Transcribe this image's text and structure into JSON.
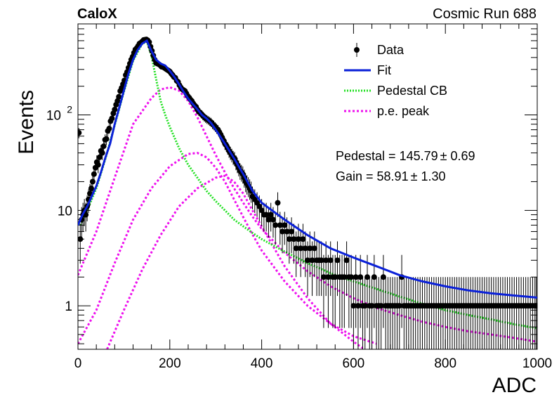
{
  "chart_data": {
    "type": "scatter",
    "experiment_label": "CaloX",
    "run_label": "Cosmic Run 688",
    "xlabel": "ADC",
    "ylabel": "Events",
    "xlim": [
      0,
      1000
    ],
    "ylim": [
      0.35,
      900
    ],
    "y_scale": "log",
    "x_ticks": [
      {
        "value": 0,
        "label": "0"
      },
      {
        "value": 200,
        "label": "200"
      },
      {
        "value": 400,
        "label": "400"
      },
      {
        "value": 600,
        "label": "600"
      },
      {
        "value": 800,
        "label": "800"
      },
      {
        "value": 1000,
        "label": "1000"
      }
    ],
    "y_ticks": [
      {
        "value": 1,
        "label": "1"
      },
      {
        "value": 10,
        "label": "10"
      },
      {
        "value": 100,
        "label": "10",
        "exponent": "2"
      }
    ],
    "legend_position": "top-right",
    "legend": [
      {
        "label": "Data",
        "style": "marker",
        "color": "#000000"
      },
      {
        "label": "Fit",
        "style": "solid",
        "color": "#0a20d8"
      },
      {
        "label": "Pedestal CB",
        "style": "dotted",
        "color": "#22e022"
      },
      {
        "label": "p.e. peak",
        "style": "dashed",
        "color": "#ee10ee"
      }
    ],
    "annotations": [
      {
        "text": "Pedestal = 145.79",
        "pm": "± 0.69"
      },
      {
        "text": "Gain = 58.91",
        "pm": "± 1.30"
      }
    ],
    "data_points": [
      [
        2,
        65
      ],
      [
        5,
        5
      ],
      [
        8,
        8
      ],
      [
        11,
        9
      ],
      [
        14,
        10
      ],
      [
        17,
        9
      ],
      [
        20,
        11
      ],
      [
        23,
        13
      ],
      [
        26,
        15
      ],
      [
        29,
        17
      ],
      [
        32,
        20
      ],
      [
        35,
        24
      ],
      [
        38,
        28
      ],
      [
        41,
        32
      ],
      [
        44,
        30
      ],
      [
        47,
        36
      ],
      [
        50,
        42
      ],
      [
        53,
        40
      ],
      [
        56,
        47
      ],
      [
        59,
        55
      ],
      [
        62,
        56
      ],
      [
        65,
        68
      ],
      [
        68,
        72
      ],
      [
        71,
        86
      ],
      [
        74,
        92
      ],
      [
        77,
        104
      ],
      [
        80,
        114
      ],
      [
        83,
        128
      ],
      [
        86,
        140
      ],
      [
        89,
        155
      ],
      [
        92,
        178
      ],
      [
        95,
        192
      ],
      [
        98,
        210
      ],
      [
        101,
        230
      ],
      [
        104,
        262
      ],
      [
        107,
        282
      ],
      [
        110,
        312
      ],
      [
        113,
        345
      ],
      [
        116,
        380
      ],
      [
        119,
        408
      ],
      [
        122,
        448
      ],
      [
        125,
        485
      ],
      [
        128,
        502
      ],
      [
        131,
        528
      ],
      [
        134,
        560
      ],
      [
        137,
        572
      ],
      [
        140,
        590
      ],
      [
        143,
        610
      ],
      [
        146,
        615
      ],
      [
        149,
        618
      ],
      [
        152,
        605
      ],
      [
        155,
        580
      ],
      [
        158,
        520
      ],
      [
        161,
        470
      ],
      [
        164,
        420
      ],
      [
        167,
        380
      ],
      [
        170,
        350
      ],
      [
        173,
        345
      ],
      [
        176,
        340
      ],
      [
        179,
        332
      ],
      [
        182,
        320
      ],
      [
        185,
        318
      ],
      [
        188,
        312
      ],
      [
        191,
        305
      ],
      [
        194,
        298
      ],
      [
        197,
        292
      ],
      [
        200,
        285
      ],
      [
        203,
        272
      ],
      [
        206,
        262
      ],
      [
        209,
        250
      ],
      [
        212,
        245
      ],
      [
        215,
        228
      ],
      [
        218,
        222
      ],
      [
        221,
        205
      ],
      [
        224,
        194
      ],
      [
        227,
        186
      ],
      [
        230,
        182
      ],
      [
        233,
        178
      ],
      [
        236,
        168
      ],
      [
        239,
        158
      ],
      [
        242,
        152
      ],
      [
        245,
        145
      ],
      [
        248,
        140
      ],
      [
        251,
        132
      ],
      [
        254,
        126
      ],
      [
        257,
        122
      ],
      [
        260,
        114
      ],
      [
        263,
        108
      ],
      [
        266,
        106
      ],
      [
        269,
        102
      ],
      [
        272,
        98
      ],
      [
        275,
        95
      ],
      [
        278,
        92
      ],
      [
        281,
        90
      ],
      [
        284,
        88
      ],
      [
        287,
        86
      ],
      [
        290,
        84
      ],
      [
        293,
        80
      ],
      [
        296,
        78
      ],
      [
        299,
        75
      ],
      [
        302,
        72
      ],
      [
        305,
        70
      ],
      [
        308,
        66
      ],
      [
        311,
        62
      ],
      [
        314,
        58
      ],
      [
        317,
        54
      ],
      [
        320,
        50
      ],
      [
        323,
        48
      ],
      [
        326,
        45
      ],
      [
        329,
        42
      ],
      [
        332,
        40
      ],
      [
        335,
        38
      ],
      [
        338,
        36
      ],
      [
        341,
        35
      ],
      [
        344,
        32
      ],
      [
        347,
        30
      ],
      [
        350,
        28
      ],
      [
        353,
        26
      ],
      [
        356,
        25
      ],
      [
        359,
        24
      ],
      [
        362,
        22
      ],
      [
        365,
        20
      ],
      [
        368,
        19
      ],
      [
        371,
        18
      ],
      [
        374,
        17
      ],
      [
        377,
        16
      ],
      [
        380,
        14
      ],
      [
        385,
        13
      ],
      [
        390,
        12
      ],
      [
        395,
        11
      ],
      [
        400,
        10
      ],
      [
        405,
        9
      ],
      [
        410,
        9
      ],
      [
        415,
        8
      ],
      [
        420,
        9
      ],
      [
        425,
        8
      ],
      [
        430,
        7
      ],
      [
        435,
        12
      ],
      [
        440,
        7
      ],
      [
        445,
        6
      ],
      [
        450,
        7
      ],
      [
        455,
        6
      ],
      [
        460,
        5
      ],
      [
        465,
        6
      ],
      [
        470,
        5
      ],
      [
        475,
        4
      ],
      [
        480,
        5
      ],
      [
        485,
        4
      ],
      [
        490,
        5
      ],
      [
        495,
        4
      ],
      [
        500,
        3
      ],
      [
        505,
        4
      ],
      [
        510,
        3
      ],
      [
        515,
        4
      ],
      [
        520,
        3
      ],
      [
        525,
        3
      ],
      [
        530,
        3
      ],
      [
        535,
        2
      ],
      [
        540,
        3
      ],
      [
        545,
        2
      ],
      [
        550,
        3
      ],
      [
        555,
        2
      ],
      [
        560,
        2
      ],
      [
        565,
        3
      ],
      [
        570,
        2
      ],
      [
        575,
        2
      ],
      [
        580,
        2
      ],
      [
        585,
        3
      ],
      [
        590,
        2
      ],
      [
        595,
        2
      ],
      [
        600,
        1
      ],
      [
        605,
        2
      ],
      [
        610,
        1
      ],
      [
        615,
        2
      ],
      [
        620,
        1
      ],
      [
        625,
        1
      ],
      [
        630,
        2
      ],
      [
        635,
        1
      ],
      [
        640,
        1
      ],
      [
        645,
        2
      ],
      [
        650,
        1
      ],
      [
        655,
        1
      ],
      [
        660,
        1
      ],
      [
        665,
        2
      ],
      [
        670,
        1
      ],
      [
        675,
        1
      ],
      [
        680,
        1
      ],
      [
        685,
        1
      ],
      [
        690,
        1
      ],
      [
        695,
        1
      ],
      [
        700,
        1
      ],
      [
        705,
        2
      ],
      [
        710,
        1
      ],
      [
        715,
        1
      ],
      [
        720,
        1
      ],
      [
        725,
        1
      ],
      [
        730,
        1
      ],
      [
        735,
        1
      ],
      [
        740,
        1
      ],
      [
        745,
        1
      ],
      [
        750,
        1
      ],
      [
        755,
        1
      ],
      [
        760,
        1
      ],
      [
        765,
        1
      ],
      [
        770,
        1
      ],
      [
        775,
        1
      ],
      [
        780,
        1
      ],
      [
        785,
        1
      ],
      [
        790,
        1
      ],
      [
        795,
        1
      ],
      [
        800,
        1
      ],
      [
        805,
        1
      ],
      [
        810,
        1
      ],
      [
        815,
        1
      ],
      [
        820,
        1
      ],
      [
        825,
        1
      ],
      [
        830,
        1
      ],
      [
        835,
        1
      ],
      [
        840,
        1
      ],
      [
        845,
        1
      ],
      [
        850,
        1
      ],
      [
        855,
        1
      ],
      [
        860,
        1
      ],
      [
        865,
        1
      ],
      [
        870,
        1
      ],
      [
        875,
        1
      ],
      [
        880,
        1
      ],
      [
        885,
        1
      ],
      [
        890,
        1
      ],
      [
        895,
        1
      ],
      [
        900,
        1
      ],
      [
        905,
        1
      ],
      [
        910,
        1
      ],
      [
        915,
        1
      ],
      [
        920,
        1
      ],
      [
        925,
        1
      ],
      [
        930,
        1
      ],
      [
        935,
        1
      ],
      [
        940,
        1
      ],
      [
        945,
        1
      ],
      [
        950,
        1
      ],
      [
        955,
        1
      ],
      [
        960,
        1
      ],
      [
        965,
        1
      ],
      [
        970,
        1
      ],
      [
        975,
        1
      ],
      [
        980,
        1
      ],
      [
        985,
        1
      ],
      [
        990,
        1
      ],
      [
        995,
        1
      ],
      [
        998,
        1
      ]
    ],
    "fit_curve": [
      [
        0,
        7
      ],
      [
        10,
        9
      ],
      [
        20,
        11
      ],
      [
        30,
        14
      ],
      [
        40,
        18
      ],
      [
        50,
        25
      ],
      [
        60,
        36
      ],
      [
        70,
        50
      ],
      [
        80,
        80
      ],
      [
        90,
        120
      ],
      [
        100,
        180
      ],
      [
        110,
        270
      ],
      [
        120,
        380
      ],
      [
        130,
        480
      ],
      [
        140,
        560
      ],
      [
        150,
        600
      ],
      [
        160,
        470
      ],
      [
        170,
        380
      ],
      [
        180,
        345
      ],
      [
        190,
        330
      ],
      [
        200,
        290
      ],
      [
        210,
        250
      ],
      [
        220,
        210
      ],
      [
        230,
        175
      ],
      [
        240,
        148
      ],
      [
        250,
        130
      ],
      [
        260,
        115
      ],
      [
        270,
        100
      ],
      [
        280,
        92
      ],
      [
        290,
        82
      ],
      [
        300,
        70
      ],
      [
        320,
        50
      ],
      [
        340,
        35
      ],
      [
        360,
        24
      ],
      [
        380,
        16
      ],
      [
        400,
        12
      ],
      [
        450,
        8
      ],
      [
        500,
        5.5
      ],
      [
        550,
        4
      ],
      [
        600,
        3.2
      ],
      [
        650,
        2.6
      ],
      [
        700,
        2.1
      ],
      [
        750,
        1.8
      ],
      [
        800,
        1.6
      ],
      [
        850,
        1.45
      ],
      [
        900,
        1.35
      ],
      [
        950,
        1.28
      ],
      [
        1000,
        1.22
      ]
    ],
    "pedestal_cb": [
      [
        5,
        7
      ],
      [
        20,
        10
      ],
      [
        40,
        17
      ],
      [
        60,
        35
      ],
      [
        80,
        78
      ],
      [
        100,
        175
      ],
      [
        120,
        370
      ],
      [
        140,
        560
      ],
      [
        150,
        585
      ],
      [
        160,
        420
      ],
      [
        170,
        240
      ],
      [
        180,
        140
      ],
      [
        190,
        100
      ],
      [
        200,
        75
      ],
      [
        220,
        45
      ],
      [
        240,
        30
      ],
      [
        260,
        22
      ],
      [
        280,
        16
      ],
      [
        300,
        12.5
      ],
      [
        320,
        10
      ],
      [
        340,
        8
      ],
      [
        360,
        6.8
      ],
      [
        380,
        5.8
      ],
      [
        400,
        5
      ],
      [
        450,
        3.7
      ],
      [
        500,
        2.8
      ],
      [
        550,
        2.2
      ],
      [
        600,
        1.8
      ],
      [
        650,
        1.5
      ],
      [
        700,
        1.25
      ],
      [
        750,
        1.05
      ],
      [
        800,
        0.9
      ],
      [
        850,
        0.8
      ],
      [
        900,
        0.72
      ],
      [
        950,
        0.64
      ],
      [
        1000,
        0.58
      ]
    ],
    "pe_peaks": [
      [
        [
          0,
          2.1
        ],
        [
          40,
          6
        ],
        [
          80,
          22
        ],
        [
          120,
          80
        ],
        [
          160,
          150
        ],
        [
          180,
          185
        ],
        [
          200,
          195
        ],
        [
          220,
          180
        ],
        [
          240,
          140
        ],
        [
          260,
          95
        ],
        [
          280,
          60
        ],
        [
          300,
          38
        ],
        [
          320,
          25
        ],
        [
          340,
          17
        ],
        [
          360,
          12
        ],
        [
          380,
          8.6
        ],
        [
          400,
          6.4
        ],
        [
          450,
          3.6
        ],
        [
          500,
          2.3
        ],
        [
          550,
          1.6
        ],
        [
          600,
          1.2
        ],
        [
          650,
          0.95
        ],
        [
          700,
          0.8
        ],
        [
          750,
          0.68
        ],
        [
          800,
          0.6
        ],
        [
          850,
          0.54
        ],
        [
          900,
          0.5
        ],
        [
          950,
          0.46
        ],
        [
          1000,
          0.42
        ]
      ],
      [
        [
          0,
          0.4
        ],
        [
          40,
          0.9
        ],
        [
          80,
          2.8
        ],
        [
          120,
          8
        ],
        [
          160,
          17
        ],
        [
          200,
          29
        ],
        [
          240,
          39
        ],
        [
          260,
          40
        ],
        [
          280,
          36
        ],
        [
          300,
          28
        ],
        [
          320,
          20
        ],
        [
          340,
          13
        ],
        [
          360,
          8.5
        ],
        [
          380,
          5.6
        ],
        [
          400,
          3.8
        ],
        [
          450,
          1.8
        ],
        [
          500,
          1.0
        ],
        [
          550,
          0.65
        ],
        [
          600,
          0.48
        ],
        [
          650,
          0.4
        ]
      ],
      [
        [
          60,
          0.32
        ],
        [
          100,
          0.9
        ],
        [
          140,
          2.4
        ],
        [
          180,
          5.5
        ],
        [
          220,
          11
        ],
        [
          260,
          17
        ],
        [
          300,
          22
        ],
        [
          320,
          23
        ],
        [
          340,
          20
        ],
        [
          360,
          15
        ],
        [
          380,
          10
        ],
        [
          400,
          6.8
        ],
        [
          450,
          2.6
        ],
        [
          500,
          1.2
        ],
        [
          550,
          0.65
        ],
        [
          600,
          0.42
        ],
        [
          620,
          0.36
        ]
      ]
    ],
    "colors": {
      "fit": "#0a20d8",
      "pedestal": "#22e022",
      "pe": "#ee10ee",
      "data": "#000000"
    }
  }
}
